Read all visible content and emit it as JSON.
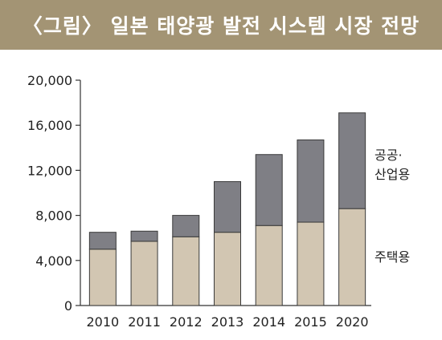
{
  "header": {
    "title": "〈그림〉 일본 태양광 발전 시스템 시장 전망"
  },
  "colors": {
    "header_bg": "#a39474",
    "residential": "#d2c6b2",
    "public_industrial": "#7f7f85",
    "axis": "#333333",
    "text": "#222222"
  },
  "chart_data": {
    "type": "bar",
    "stacked": true,
    "title": "〈그림〉 일본 태양광 발전 시스템 시장 전망",
    "categories": [
      "2010",
      "2011",
      "2012",
      "2013",
      "2014",
      "2015",
      "2020"
    ],
    "series": [
      {
        "name": "주택용",
        "values": [
          5000,
          5700,
          6100,
          6500,
          7100,
          7400,
          8600
        ]
      },
      {
        "name": "공공·산업용",
        "values": [
          1500,
          900,
          1900,
          4500,
          6300,
          7300,
          8500
        ]
      }
    ],
    "series_labels": {
      "public_industrial_line1": "공공·",
      "public_industrial_line2": "산업용",
      "residential": "주택용"
    },
    "ylim": [
      0,
      20000
    ],
    "yticks": [
      0,
      4000,
      8000,
      12000,
      16000,
      20000
    ],
    "ytick_labels": [
      "0",
      "4,000",
      "8,000",
      "12,000",
      "16,000",
      "20,000"
    ],
    "xlabel": "",
    "ylabel": "",
    "grid": false,
    "legend": "right, inline labels"
  }
}
